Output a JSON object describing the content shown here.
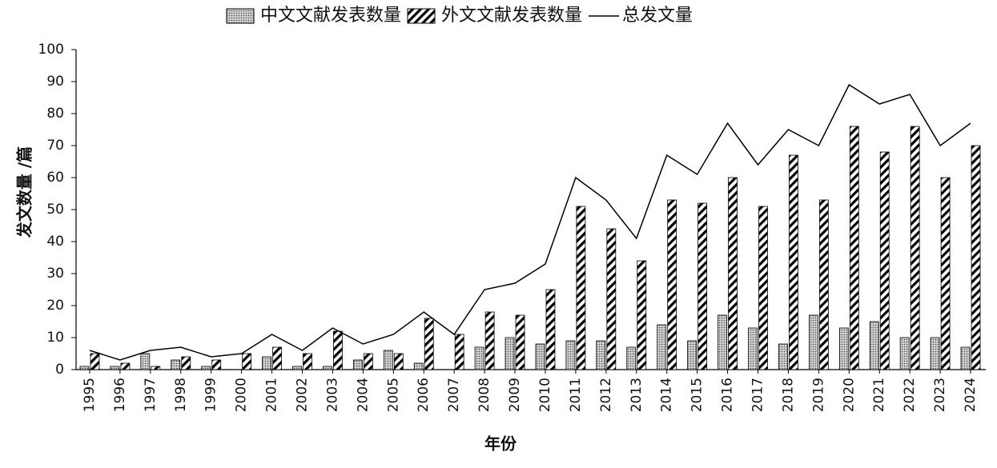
{
  "chart_data": {
    "type": "bar",
    "categories": [
      "1995",
      "1996",
      "1997",
      "1998",
      "1999",
      "2000",
      "2001",
      "2002",
      "2003",
      "2004",
      "2005",
      "2006",
      "2007",
      "2008",
      "2009",
      "2010",
      "2011",
      "2012",
      "2013",
      "2014",
      "2015",
      "2016",
      "2017",
      "2018",
      "2019",
      "2020",
      "2021",
      "2022",
      "2023",
      "2024"
    ],
    "series": [
      {
        "name": "中文文献发表数量",
        "type": "bar",
        "pattern": "dots",
        "color": "#777777",
        "values": [
          1,
          1,
          5,
          3,
          1,
          0,
          4,
          1,
          1,
          3,
          6,
          2,
          0,
          7,
          10,
          8,
          9,
          9,
          7,
          14,
          9,
          17,
          13,
          8,
          17,
          13,
          15,
          10,
          10,
          7
        ]
      },
      {
        "name": "外文文献发表数量",
        "type": "bar",
        "pattern": "hatch",
        "color": "#000000",
        "values": [
          5,
          2,
          1,
          4,
          3,
          5,
          7,
          5,
          12,
          5,
          5,
          16,
          11,
          18,
          17,
          25,
          51,
          44,
          34,
          53,
          52,
          60,
          51,
          67,
          53,
          76,
          68,
          76,
          60,
          70
        ]
      },
      {
        "name": "总发文量",
        "type": "line",
        "color": "#000000",
        "values": [
          6,
          3,
          6,
          7,
          4,
          5,
          11,
          6,
          13,
          8,
          11,
          18,
          11,
          25,
          27,
          33,
          60,
          53,
          41,
          67,
          61,
          77,
          64,
          75,
          70,
          89,
          83,
          86,
          70,
          77
        ]
      }
    ],
    "x_label": "年份",
    "y_label": "发文数量 /篇",
    "ylim": [
      0,
      100
    ],
    "yticks": [
      0,
      10,
      20,
      30,
      40,
      50,
      60,
      70,
      80,
      90,
      100
    ],
    "grid": false,
    "legend": "top"
  }
}
